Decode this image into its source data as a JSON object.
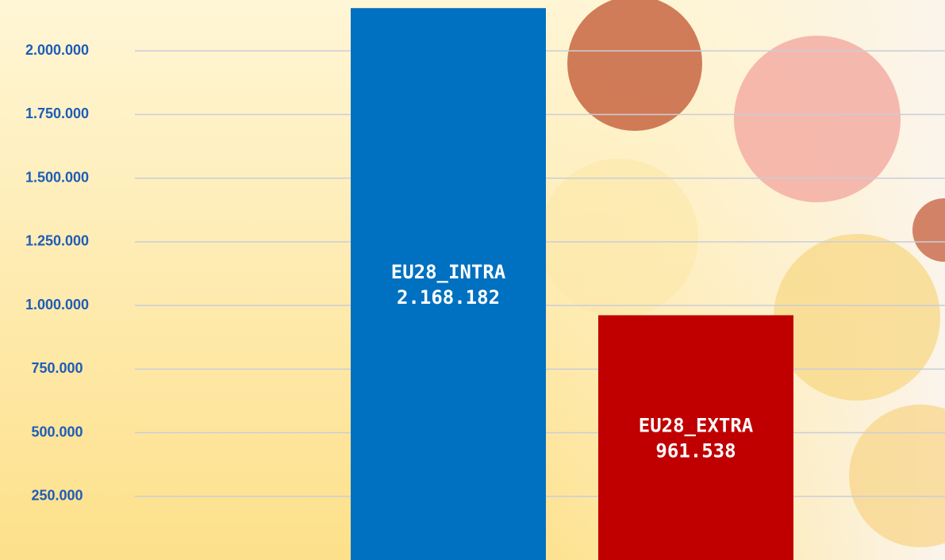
{
  "chart_data": {
    "type": "bar",
    "categories": [
      "EU28_INTRA",
      "EU28_EXTRA"
    ],
    "values": [
      2168182,
      961538
    ],
    "value_labels": [
      "2.168.182",
      "961.538"
    ],
    "colors": [
      "#0070c0",
      "#c00000"
    ],
    "ylim": [
      0,
      2200000
    ],
    "yticks": [
      {
        "value": 250000,
        "label": "250.000"
      },
      {
        "value": 500000,
        "label": "500.000"
      },
      {
        "value": 750000,
        "label": "750.000"
      },
      {
        "value": 1000000,
        "label": "1.000.000"
      },
      {
        "value": 1250000,
        "label": "1.250.000"
      },
      {
        "value": 1500000,
        "label": "1.500.000"
      },
      {
        "value": 1750000,
        "label": "1.750.000"
      },
      {
        "value": 2000000,
        "label": "2.000.000"
      }
    ],
    "grid": true
  }
}
